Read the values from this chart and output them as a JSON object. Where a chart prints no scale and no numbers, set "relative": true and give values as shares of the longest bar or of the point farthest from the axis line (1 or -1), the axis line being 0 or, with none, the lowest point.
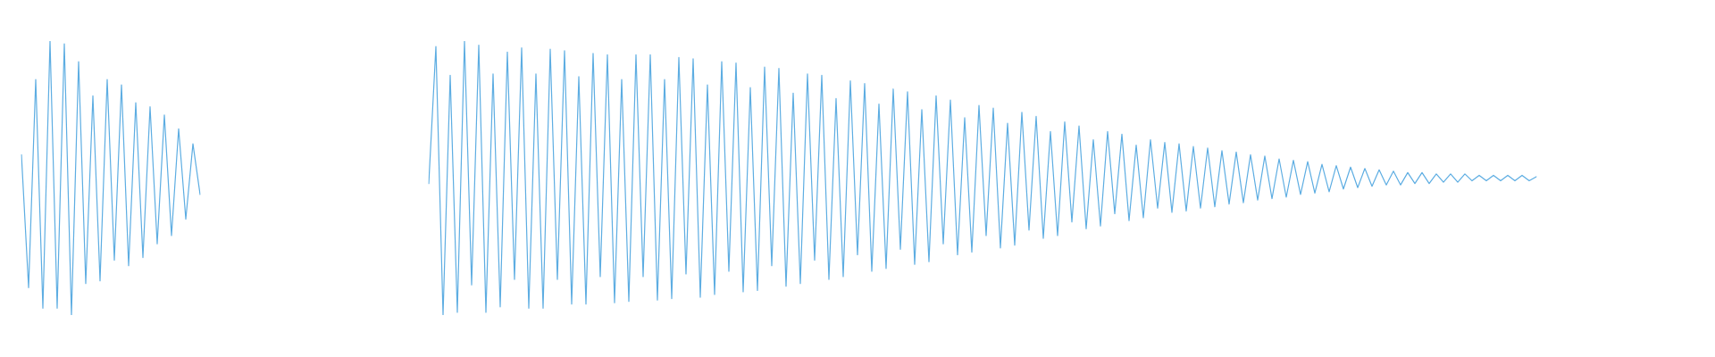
{
  "chart_data": [
    {
      "type": "line",
      "relative": true,
      "color": "#5dade2",
      "categories": [
        null,
        null,
        null,
        null,
        null,
        null,
        null,
        null,
        null,
        null,
        null,
        null,
        null,
        null,
        null,
        null,
        null,
        null,
        null,
        null,
        null,
        null,
        null,
        null,
        null,
        null
      ],
      "values": [
        0.585,
        0.1,
        0.86,
        0.025,
        1,
        0.025,
        0.99,
        0,
        0.925,
        0.115,
        0.8,
        0.125,
        0.86,
        0.2,
        0.84,
        0.18,
        0.775,
        0.21,
        0.76,
        0.26,
        0.73,
        0.29,
        0.68,
        0.35,
        0.625,
        0.44
      ]
    },
    {
      "type": "line",
      "relative": true,
      "color": "#5dade2",
      "categories": [
        null,
        null,
        null,
        null,
        null,
        null,
        null,
        null,
        null,
        null,
        null,
        null,
        null,
        null,
        null,
        null,
        null,
        null,
        null,
        null,
        null,
        null,
        null,
        null,
        null,
        null,
        null,
        null,
        null,
        null,
        null,
        null,
        null,
        null,
        null,
        null,
        null,
        null,
        null,
        null,
        null,
        null,
        null,
        null,
        null,
        null,
        null,
        null,
        null,
        null,
        null,
        null,
        null,
        null,
        null,
        null,
        null,
        null,
        null,
        null,
        null,
        null,
        null,
        null,
        null,
        null,
        null,
        null,
        null,
        null,
        null,
        null,
        null,
        null,
        null,
        null,
        null,
        null,
        null,
        null,
        null,
        null,
        null,
        null,
        null,
        null,
        null,
        null,
        null,
        null,
        null,
        null,
        null,
        null,
        null,
        null,
        null,
        null,
        null,
        null,
        null,
        null,
        null,
        null,
        null,
        null,
        null,
        null,
        null,
        null,
        null,
        null,
        null,
        null,
        null,
        null,
        null,
        null,
        null,
        null,
        null,
        null,
        null,
        null,
        null,
        null,
        null,
        null,
        null,
        null,
        null,
        null,
        null,
        null,
        null,
        null,
        null,
        null,
        null,
        null,
        null,
        null,
        null,
        null,
        null,
        null,
        null,
        null,
        null,
        null,
        null,
        null,
        null,
        null,
        null,
        null
      ],
      "values": [
        0.48,
        0.98,
        0,
        0.875,
        0.01,
        1,
        0.11,
        0.985,
        0.01,
        0.88,
        0.03,
        0.96,
        0.13,
        0.975,
        0.025,
        0.88,
        0.025,
        0.97,
        0.13,
        0.965,
        0.04,
        0.87,
        0.04,
        0.955,
        0.14,
        0.95,
        0.045,
        0.86,
        0.05,
        0.95,
        0.14,
        0.95,
        0.055,
        0.86,
        0.06,
        0.94,
        0.15,
        0.935,
        0.065,
        0.84,
        0.075,
        0.925,
        0.16,
        0.92,
        0.085,
        0.83,
        0.09,
        0.905,
        0.18,
        0.9,
        0.105,
        0.81,
        0.115,
        0.88,
        0.2,
        0.875,
        0.13,
        0.79,
        0.14,
        0.855,
        0.22,
        0.845,
        0.16,
        0.77,
        0.17,
        0.825,
        0.24,
        0.815,
        0.185,
        0.75,
        0.195,
        0.8,
        0.26,
        0.785,
        0.22,
        0.72,
        0.23,
        0.765,
        0.29,
        0.755,
        0.245,
        0.7,
        0.255,
        0.74,
        0.31,
        0.725,
        0.28,
        0.67,
        0.29,
        0.705,
        0.34,
        0.69,
        0.315,
        0.64,
        0.325,
        0.67,
        0.37,
        0.66,
        0.345,
        0.62,
        0.355,
        0.64,
        0.39,
        0.63,
        0.375,
        0.625,
        0.38,
        0.615,
        0.39,
        0.61,
        0.395,
        0.6,
        0.405,
        0.595,
        0.41,
        0.585,
        0.42,
        0.58,
        0.425,
        0.57,
        0.43,
        0.565,
        0.44,
        0.56,
        0.445,
        0.55,
        0.45,
        0.545,
        0.46,
        0.54,
        0.465,
        0.535,
        0.47,
        0.53,
        0.475,
        0.525,
        0.475,
        0.52,
        0.48,
        0.52,
        0.48,
        0.515,
        0.485,
        0.515,
        0.485,
        0.515,
        0.49,
        0.51,
        0.49,
        0.51,
        0.49,
        0.51,
        0.49,
        0.51,
        0.49,
        0.505
      ]
    }
  ]
}
